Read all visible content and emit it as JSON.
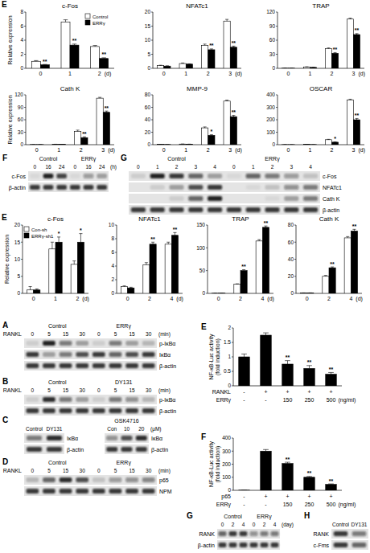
{
  "chart_data": [
    {
      "type": "bar",
      "panel": "E",
      "title": "c-Fos",
      "y_label": "Relative expression",
      "x_label": "(d)",
      "legend": "upper right",
      "categories": [
        "0",
        "1",
        "2"
      ],
      "ylim": [
        0,
        8
      ],
      "yticks": [
        0,
        2,
        4,
        6,
        8
      ],
      "series": [
        {
          "name": "Control",
          "color": "#ffffff",
          "values": [
            1,
            6.6,
            3.1
          ],
          "errors": [
            0.1,
            0.3,
            0.15
          ]
        },
        {
          "name": "ERRγ",
          "color": "#000000",
          "values": [
            0.5,
            3.3,
            1.4
          ],
          "errors": [
            0.05,
            0.15,
            0.1
          ],
          "significance": [
            "**",
            "**",
            "**"
          ]
        }
      ]
    },
    {
      "type": "bar",
      "title": "NFATc1",
      "x_label": "(d)",
      "categories": [
        "0",
        "1",
        "2",
        "3"
      ],
      "ylim": [
        0,
        20
      ],
      "yticks": [
        0,
        5,
        10,
        15,
        20
      ],
      "series": [
        {
          "name": "Control",
          "color": "#ffffff",
          "values": [
            1,
            1.7,
            8.2,
            16.8
          ],
          "errors": [
            0.1,
            0.2,
            0.4,
            0.6
          ]
        },
        {
          "name": "ERRγ",
          "color": "#000000",
          "values": [
            0.8,
            1.5,
            6.6,
            7.5
          ],
          "errors": [
            0.1,
            0.1,
            0.3,
            0.4
          ],
          "significance": [
            null,
            null,
            "**",
            "**"
          ]
        }
      ]
    },
    {
      "type": "bar",
      "title": "TRAP",
      "x_label": "(d)",
      "categories": [
        "0",
        "1",
        "2",
        "3"
      ],
      "ylim": [
        0,
        120
      ],
      "yticks": [
        0,
        30,
        60,
        90,
        120
      ],
      "series": [
        {
          "name": "Control",
          "color": "#ffffff",
          "values": [
            0.5,
            3,
            42,
            105
          ],
          "errors": [
            0.1,
            0.3,
            1.5,
            2
          ]
        },
        {
          "name": "ERRγ",
          "color": "#000000",
          "values": [
            0.3,
            2,
            32,
            72
          ],
          "errors": [
            0.1,
            0.2,
            1.5,
            2
          ],
          "significance": [
            null,
            null,
            "**",
            "**"
          ]
        }
      ]
    },
    {
      "type": "bar",
      "title": "Cath K",
      "y_label": "Relative expression",
      "x_label": "(d)",
      "categories": [
        "0",
        "1",
        "2",
        "3"
      ],
      "ylim": [
        0,
        120
      ],
      "yticks": [
        0,
        30,
        60,
        90,
        120
      ],
      "series": [
        {
          "name": "Control",
          "color": "#ffffff",
          "values": [
            0.5,
            1,
            32,
            112
          ],
          "errors": [
            0.1,
            0.1,
            3,
            2
          ]
        },
        {
          "name": "ERRγ",
          "color": "#000000",
          "values": [
            0.3,
            0.8,
            17,
            78
          ],
          "errors": [
            0.1,
            0.1,
            2,
            3
          ],
          "significance": [
            null,
            null,
            "**",
            "**"
          ]
        }
      ]
    },
    {
      "type": "bar",
      "title": "MMP-9",
      "x_label": "(d)",
      "categories": [
        "0",
        "1",
        "2",
        "3"
      ],
      "ylim": [
        0,
        80
      ],
      "yticks": [
        0,
        20,
        40,
        60,
        80
      ],
      "series": [
        {
          "name": "Control",
          "color": "#ffffff",
          "values": [
            0.5,
            1,
            27,
            70
          ],
          "errors": [
            0.1,
            0.1,
            1.5,
            1.5
          ]
        },
        {
          "name": "ERRγ",
          "color": "#000000",
          "values": [
            0.3,
            0.8,
            15,
            45
          ],
          "errors": [
            0.1,
            0.1,
            1,
            2
          ],
          "significance": [
            null,
            null,
            "*",
            "**"
          ]
        }
      ]
    },
    {
      "type": "bar",
      "title": "OSCAR",
      "x_label": "(d)",
      "categories": [
        "0",
        "1",
        "2",
        "3"
      ],
      "ylim": [
        0,
        400
      ],
      "yticks": [
        0,
        100,
        200,
        300,
        400
      ],
      "series": [
        {
          "name": "Control",
          "color": "#ffffff",
          "values": [
            1,
            2,
            40,
            360
          ],
          "errors": [
            0.5,
            0.5,
            3,
            5
          ]
        },
        {
          "name": "ERRγ",
          "color": "#000000",
          "values": [
            0.5,
            1,
            20,
            200
          ],
          "errors": [
            0.3,
            0.3,
            2,
            10
          ],
          "significance": [
            null,
            null,
            "*",
            "**"
          ]
        }
      ]
    },
    {
      "type": "bar",
      "panel": "E",
      "title": "c-Fos",
      "y_label": "Relative expression",
      "x_label": "(d)",
      "legend": "upper left",
      "categories": [
        "0",
        "1",
        "2"
      ],
      "ylim": [
        0,
        20
      ],
      "yticks": [
        0,
        5,
        10,
        15,
        20
      ],
      "series": [
        {
          "name": "Con-sh",
          "color": "#ffffff",
          "values": [
            1,
            13,
            8.5
          ],
          "errors": [
            1,
            2,
            1
          ]
        },
        {
          "name": "ERRγ-sh1",
          "color": "#000000",
          "values": [
            1,
            15,
            15
          ],
          "errors": [
            0.3,
            1.5,
            2.5
          ],
          "significance": [
            null,
            "*",
            "*"
          ]
        }
      ]
    },
    {
      "type": "bar",
      "title": "NFATc1",
      "x_label": "(d)",
      "categories": [
        "0",
        "2",
        "4"
      ],
      "ylim": [
        0,
        10
      ],
      "yticks": [
        0,
        2,
        4,
        6,
        8,
        10
      ],
      "series": [
        {
          "name": "Con-sh",
          "color": "#ffffff",
          "values": [
            1,
            4.2,
            7.2
          ],
          "errors": [
            0.1,
            0.3,
            0.3
          ]
        },
        {
          "name": "ERRγ-sh1",
          "color": "#000000",
          "values": [
            0.8,
            7.2,
            8.5
          ],
          "errors": [
            0.1,
            0.3,
            0.4
          ],
          "significance": [
            null,
            "**",
            "**"
          ]
        }
      ]
    },
    {
      "type": "bar",
      "title": "TRAP",
      "x_label": "(d)",
      "categories": [
        "0",
        "2",
        "4"
      ],
      "ylim": [
        0,
        150
      ],
      "yticks": [
        0,
        50,
        100,
        150
      ],
      "series": [
        {
          "name": "Con-sh",
          "color": "#ffffff",
          "values": [
            0.5,
            20,
            115
          ],
          "errors": [
            0.1,
            1,
            3
          ]
        },
        {
          "name": "ERRγ-sh1",
          "color": "#000000",
          "values": [
            0.5,
            50,
            145
          ],
          "errors": [
            0.1,
            2,
            3
          ],
          "significance": [
            null,
            "**",
            "**"
          ]
        }
      ]
    },
    {
      "type": "bar",
      "title": "Cath K",
      "x_label": "(d)",
      "categories": [
        "0",
        "2",
        "4"
      ],
      "ylim": [
        0,
        80
      ],
      "yticks": [
        0,
        20,
        40,
        60,
        80
      ],
      "series": [
        {
          "name": "Con-sh",
          "color": "#ffffff",
          "values": [
            0.5,
            20,
            65
          ],
          "errors": [
            0.1,
            1,
            1.5
          ]
        },
        {
          "name": "ERRγ-sh1",
          "color": "#000000",
          "values": [
            0.5,
            30,
            73
          ],
          "errors": [
            0.1,
            1,
            2
          ],
          "significance": [
            null,
            "**",
            "**"
          ]
        }
      ]
    },
    {
      "type": "bar",
      "panel": "E",
      "y_label": [
        "NF-κB-Luc activity",
        "(fold induction)"
      ],
      "categories": [
        null,
        null,
        null,
        null,
        null
      ],
      "ylim": [
        0,
        2
      ],
      "yticks": [
        0,
        0.5,
        1,
        1.5,
        2
      ],
      "series": [
        {
          "color": "#000000",
          "values": [
            1,
            1.75,
            0.75,
            0.6,
            0.4
          ],
          "errors": [
            0.1,
            0.08,
            0.12,
            0.1,
            0.06
          ],
          "significance": [
            null,
            null,
            "**",
            "**",
            "**"
          ]
        }
      ],
      "conditions": [
        {
          "label": "RANKL",
          "values": [
            "-",
            "+",
            "+",
            "+",
            "+"
          ]
        },
        {
          "label": "ERRγ",
          "values": [
            "-",
            "-",
            "150",
            "250",
            "500"
          ]
        }
      ],
      "condition_unit": "(ng/ml)"
    },
    {
      "type": "bar",
      "panel": "F",
      "y_label": [
        "NF-κB-Luc activity",
        "(fold induction)"
      ],
      "categories": [
        null,
        null,
        null,
        null,
        null
      ],
      "ylim": [
        0,
        400
      ],
      "yticks": [
        0,
        100,
        200,
        300,
        400
      ],
      "series": [
        {
          "color": "#000000",
          "values": [
            1,
            300,
            205,
            100,
            45
          ],
          "errors": [
            0,
            12,
            10,
            6,
            4
          ],
          "significance": [
            null,
            null,
            "**",
            "**",
            "**"
          ]
        }
      ],
      "conditions": [
        {
          "label": "p65",
          "values": [
            "-",
            "+",
            "+",
            "+",
            "+"
          ]
        },
        {
          "label": "ERRγ",
          "values": [
            "-",
            "-",
            "150",
            "250",
            "500"
          ]
        }
      ],
      "condition_unit": "(ng/ml)"
    }
  ],
  "blots": [
    {
      "panel": "F",
      "groups": [
        "Control",
        "ERRγ"
      ],
      "lanes": [
        "0",
        "16",
        "24",
        "0",
        "16",
        "24"
      ],
      "unit": "(h)",
      "rows": [
        {
          "label": "c-Fos",
          "intensity": [
            0.05,
            0.9,
            0.75,
            0.05,
            0.35,
            0.3
          ]
        },
        {
          "label": "β-actin",
          "intensity": [
            0.8,
            0.8,
            0.8,
            0.8,
            0.8,
            0.8
          ]
        }
      ]
    },
    {
      "panel": "G",
      "groups": [
        "Control",
        "ERRγ"
      ],
      "lanes": [
        "0",
        "1",
        "2",
        "3",
        "4",
        "0",
        "1",
        "2",
        "3",
        "4"
      ],
      "rows": [
        {
          "label": "c-Fos",
          "intensity": [
            0.1,
            0.9,
            0.8,
            0.6,
            0.3,
            0.05,
            0.6,
            0.5,
            0.35,
            0.15
          ]
        },
        {
          "label": "NFATc1",
          "intensity": [
            0,
            0.1,
            0.3,
            0.7,
            0.8,
            0,
            0.05,
            0.15,
            0.4,
            0.5
          ]
        },
        {
          "label": "Cath K",
          "intensity": [
            0,
            0,
            0.1,
            0.6,
            0.9,
            0,
            0,
            0.05,
            0.3,
            0.5
          ]
        },
        {
          "label": "β-actin",
          "intensity": [
            0.8,
            0.8,
            0.8,
            0.8,
            0.8,
            0.8,
            0.8,
            0.8,
            0.8,
            0.8
          ]
        }
      ]
    },
    {
      "panel": "A",
      "lane_title": "RANKL",
      "groups": [
        "Control",
        "ERRγ"
      ],
      "lanes": [
        "0",
        "5",
        "15",
        "30",
        "0",
        "5",
        "15",
        "30"
      ],
      "unit": "(min)",
      "rows": [
        {
          "label": "p-IκBα",
          "intensity": [
            0.1,
            0.9,
            0.5,
            0.3,
            0.1,
            0.5,
            0.3,
            0.2
          ]
        },
        {
          "label": "IκBα",
          "intensity": [
            0.8,
            0.3,
            0.5,
            0.7,
            0.8,
            0.6,
            0.7,
            0.8
          ]
        },
        {
          "label": "β-actin",
          "intensity": [
            0.8,
            0.8,
            0.8,
            0.8,
            0.8,
            0.8,
            0.8,
            0.8
          ]
        }
      ]
    },
    {
      "panel": "B",
      "lane_title": "RANKL",
      "groups": [
        "Control",
        "DY131"
      ],
      "lanes": [
        "0",
        "5",
        "15",
        "30",
        "0",
        "5",
        "15",
        "30"
      ],
      "unit": "(min)",
      "rows": [
        {
          "label": "p-IκBα",
          "intensity": [
            0.1,
            0.85,
            0.5,
            0.3,
            0.1,
            0.5,
            0.4,
            0.2
          ]
        },
        {
          "label": "β-actin",
          "intensity": [
            0.8,
            0.8,
            0.8,
            0.8,
            0.8,
            0.8,
            0.8,
            0.8
          ]
        }
      ]
    },
    {
      "panel": "C",
      "lanes": [
        "Control",
        "DY131"
      ],
      "rows": [
        {
          "label": "IκBα",
          "intensity": [
            0.5,
            0.85
          ]
        },
        {
          "label": "β-actin",
          "intensity": [
            0.8,
            0.8
          ]
        }
      ]
    },
    {
      "groups": [
        "GSK4716"
      ],
      "lanes": [
        "Con",
        "10",
        "20"
      ],
      "unit": "(μM)",
      "rows": [
        {
          "label": "IκBα",
          "intensity": [
            0.4,
            0.7,
            0.85
          ]
        },
        {
          "label": "β-actin",
          "intensity": [
            0.8,
            0.8,
            0.8
          ]
        }
      ]
    },
    {
      "panel": "D",
      "lane_title": "RANKL",
      "groups": [
        "Control",
        "ERRγ"
      ],
      "lanes": [
        "0",
        "5",
        "15",
        "30",
        "0",
        "5",
        "15",
        "30"
      ],
      "unit": "(min)",
      "rows": [
        {
          "label": "p65",
          "intensity": [
            0.2,
            0.6,
            0.85,
            0.7,
            0.15,
            0.35,
            0.4,
            0.45
          ]
        },
        {
          "label": "NPM",
          "intensity": [
            0.8,
            0.8,
            0.8,
            0.8,
            0.8,
            0.8,
            0.8,
            0.8
          ]
        }
      ]
    },
    {
      "panel": "G",
      "groups": [
        "Control",
        "ERRγ"
      ],
      "lanes": [
        "0",
        "2",
        "4",
        "0",
        "2",
        "4"
      ],
      "unit": "(day)",
      "rows": [
        {
          "label": "RANK",
          "intensity": [
            0.6,
            0.8,
            0.8,
            0.4,
            0.5,
            0.5
          ]
        },
        {
          "label": "β-actin",
          "intensity": [
            0.8,
            0.8,
            0.8,
            0.8,
            0.8,
            0.8
          ]
        }
      ]
    },
    {
      "panel": "H",
      "lanes": [
        "Control",
        "DY131"
      ],
      "rows": [
        {
          "label": "RANK",
          "intensity": [
            0.8,
            0.5
          ]
        },
        {
          "label": "c-Fms",
          "intensity": [
            0.8,
            0.6
          ]
        }
      ]
    }
  ]
}
